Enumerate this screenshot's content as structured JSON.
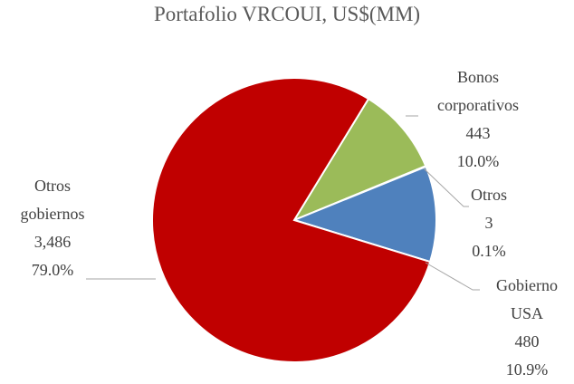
{
  "chart_data": {
    "type": "pie",
    "title": "Portafolio VRCOUI, US$(MM)",
    "categories": [
      "Bonos corporativos",
      "Otros",
      "Gobierno USA",
      "Otros gobiernos"
    ],
    "values": [
      443,
      3,
      480,
      3486
    ],
    "value_labels": [
      "443",
      "3",
      "480",
      "3,486"
    ],
    "percentage_labels": [
      "10.0%",
      "0.1%",
      "10.9%",
      "79.0%"
    ],
    "colors": [
      "#9bbb59",
      "#8064a2",
      "#4f81bd",
      "#c00000"
    ]
  }
}
